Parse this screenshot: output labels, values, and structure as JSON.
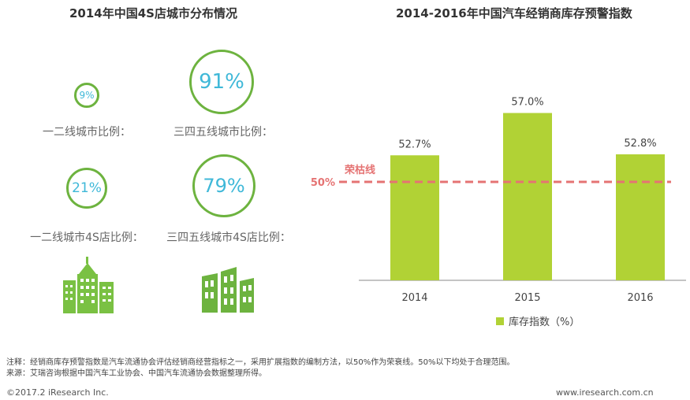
{
  "left_panel": {
    "title": "2014年中国4S店城市分布情况",
    "circles": [
      {
        "value": "9%",
        "label": "一二线城市比例："
      },
      {
        "value": "91%",
        "label": "三四五线城市比例："
      },
      {
        "value": "21%",
        "label": "一二线城市4S店比例："
      },
      {
        "value": "79%",
        "label": "三四五线城市4S店比例："
      }
    ],
    "icons": [
      "city-buildings-icon",
      "city-buildings-icon"
    ],
    "colors": {
      "ring": "#6db33f",
      "value_text": "#3fb8d8",
      "icon": "#7ac143"
    }
  },
  "chart_data": {
    "type": "bar",
    "title": "2014-2016年中国汽车经销商库存预警指数",
    "categories": [
      "2014",
      "2015",
      "2016"
    ],
    "series": [
      {
        "name": "库存指数（%）",
        "values": [
          52.7,
          57.0,
          52.8
        ],
        "color": "#b1d235"
      }
    ],
    "data_labels": [
      "52.7%",
      "57.0%",
      "52.8%"
    ],
    "reference_line": {
      "value": 50,
      "label": "荣枯线",
      "axis_label": "50%",
      "color": "#e57373",
      "style": "dashed"
    },
    "ylim": [
      40,
      58
    ],
    "grid": false,
    "legend_position": "bottom"
  },
  "notes": [
    "注释：经销商库存预警指数是汽车流通协会评估经销商经营指标之一，采用扩展指数的编制方法，以50%作为荣衰线。50%以下均处于合理范围。",
    "来源：艾瑞咨询根据中国汽车工业协会、中国汽车流通协会数据整理所得。"
  ],
  "footer": {
    "copyright": "©2017.2 iResearch Inc.",
    "website": "www.iresearch.com.cn"
  }
}
